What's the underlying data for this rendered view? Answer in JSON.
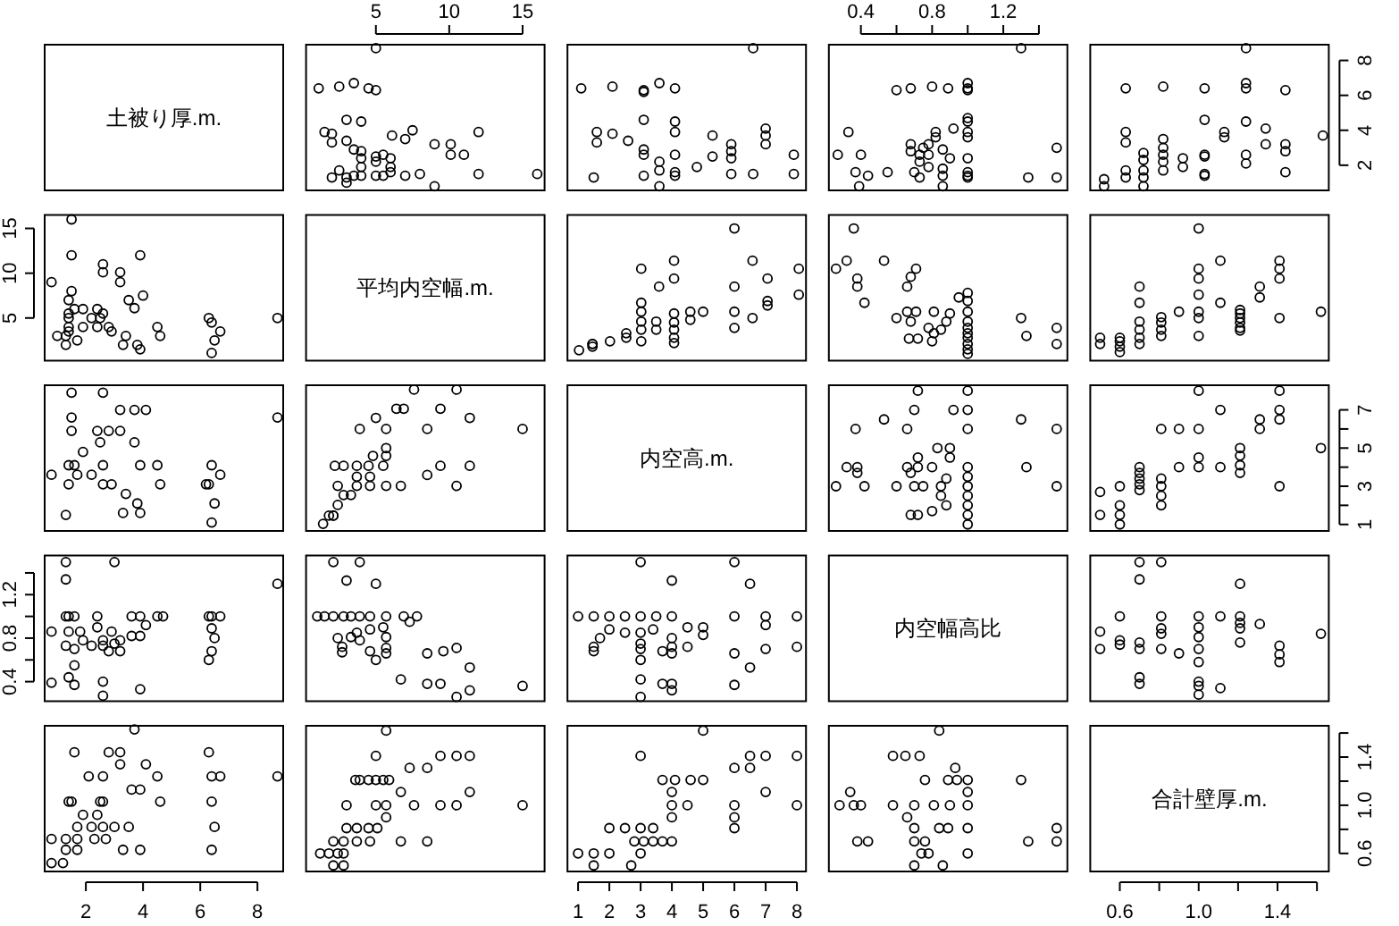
{
  "chart_data": [
    {
      "type": "other",
      "title": "土被り厚.m."
    },
    {
      "type": "scatter",
      "marker": "circle",
      "xlim": [
        0.24,
        16.5
      ],
      "ylim": [
        0.56,
        8.9
      ],
      "tick_labels": "x",
      "xticks": [
        5,
        10,
        15
      ],
      "x": [
        5.0,
        1.1,
        2.5,
        3.5,
        4.5,
        5.0,
        3.0,
        4.0,
        1.5,
        2.0,
        2.0,
        3.0,
        3.5,
        4.0,
        4.0,
        4.0,
        4.0,
        2.5,
        2.0,
        3.0,
        3.5,
        3.0,
        5.0,
        5.5,
        5.0,
        6.0,
        6.0,
        6.0,
        5.5,
        5.0,
        6.1,
        7.0,
        7.5,
        7.0,
        8.0,
        9.0,
        9.0,
        10.1,
        10.1,
        11.0,
        12.0,
        12.0,
        16.0
      ],
      "values": [
        8.7,
        6.4,
        6.5,
        6.7,
        6.4,
        6.3,
        4.6,
        4.5,
        3.9,
        3.8,
        3.3,
        3.4,
        2.9,
        2.8,
        2.4,
        1.9,
        1.4,
        1.7,
        1.3,
        1.3,
        1.4,
        1.0,
        2.5,
        2.6,
        2.2,
        2.4,
        1.9,
        1.6,
        1.4,
        1.4,
        3.7,
        3.5,
        4.0,
        1.4,
        1.5,
        0.8,
        3.2,
        3.2,
        2.6,
        2.6,
        3.9,
        1.5,
        1.5
      ]
    },
    {
      "type": "scatter",
      "marker": "circle",
      "xlim": [
        0.66,
        8.29
      ],
      "ylim": [
        0.56,
        8.9
      ],
      "tick_labels": false,
      "x": [
        6.6,
        1.1,
        2.1,
        3.1,
        3.1,
        3.6,
        4.1,
        1.6,
        1.6,
        2.1,
        2.6,
        3.1,
        3.1,
        3.1,
        3.1,
        3.6,
        3.6,
        4.1,
        4.1,
        4.1,
        4.1,
        4.1,
        4.8,
        5.3,
        5.3,
        3.6,
        1.5,
        5.9,
        5.9,
        5.9,
        5.9,
        6.6,
        7.0,
        7.0,
        7.0,
        7.9,
        7.9
      ],
      "values": [
        8.7,
        6.4,
        6.5,
        6.3,
        6.2,
        6.7,
        6.4,
        3.9,
        3.3,
        3.8,
        3.4,
        4.6,
        2.9,
        2.6,
        1.4,
        2.2,
        1.7,
        4.5,
        3.9,
        2.6,
        1.6,
        1.4,
        1.9,
        3.7,
        2.5,
        0.8,
        1.3,
        3.2,
        2.8,
        2.4,
        1.5,
        1.5,
        4.1,
        3.7,
        3.2,
        2.6,
        1.5
      ]
    },
    {
      "type": "scatter",
      "marker": "circle",
      "xlim": [
        0.22,
        1.56
      ],
      "ylim": [
        0.56,
        8.9
      ],
      "tick_labels": "x",
      "xticks": [
        0.4,
        {
          "value": 0.6,
          "label": null
        },
        0.8,
        {
          "value": 1,
          "label": null
        },
        1.2,
        {
          "value": 1.4,
          "label": null
        }
      ],
      "x": [
        1.3,
        0.6,
        0.68,
        0.8,
        0.89,
        1.0,
        1.0,
        1.0,
        1.0,
        1.0,
        1.0,
        1.0,
        1.0,
        1.0,
        1.0,
        1.0,
        0.33,
        0.27,
        0.4,
        0.37,
        0.44,
        0.39,
        0.55,
        0.68,
        0.68,
        0.7,
        0.73,
        0.73,
        0.75,
        0.73,
        0.78,
        0.78,
        0.78,
        0.82,
        0.82,
        0.86,
        0.86,
        0.86,
        0.86,
        0.9,
        0.92,
        1.5,
        1.5,
        1.34
      ],
      "values": [
        8.7,
        6.3,
        6.4,
        6.5,
        6.4,
        6.7,
        6.4,
        6.3,
        4.7,
        4.5,
        3.9,
        3.6,
        2.4,
        1.6,
        1.4,
        1.3,
        3.9,
        2.6,
        2.6,
        1.6,
        1.4,
        0.8,
        1.6,
        3.2,
        2.8,
        1.6,
        1.3,
        2.6,
        3.0,
        2.2,
        3.2,
        2.6,
        1.9,
        3.6,
        3.9,
        2.9,
        1.8,
        1.4,
        0.8,
        2.4,
        4.1,
        3.0,
        1.3,
        1.3
      ]
    },
    {
      "type": "scatter",
      "marker": "circle",
      "xlim": [
        0.45,
        1.66
      ],
      "ylim": [
        0.56,
        8.9
      ],
      "tick_labels": "y",
      "yticks": [
        2,
        4,
        6,
        8
      ],
      "x": [
        0.52,
        0.52,
        0.63,
        0.63,
        0.63,
        0.63,
        0.63,
        0.72,
        0.72,
        0.72,
        0.72,
        0.72,
        0.82,
        0.82,
        0.82,
        0.82,
        0.82,
        0.82,
        0.92,
        0.92,
        1.03,
        1.03,
        1.03,
        1.03,
        1.03,
        1.03,
        1.13,
        1.13,
        1.24,
        1.24,
        1.24,
        1.24,
        1.24,
        1.24,
        1.34,
        1.34,
        1.44,
        1.44,
        1.44,
        1.44,
        1.63
      ],
      "values": [
        1.2,
        0.8,
        6.4,
        3.9,
        3.3,
        1.7,
        1.3,
        2.7,
        2.3,
        1.7,
        1.3,
        0.8,
        6.5,
        3.5,
        3.0,
        2.6,
        2.2,
        1.7,
        2.4,
        1.9,
        6.4,
        4.6,
        2.6,
        2.5,
        1.5,
        1.4,
        3.9,
        3.6,
        8.7,
        6.7,
        6.4,
        4.5,
        2.6,
        2.1,
        4.1,
        3.2,
        6.3,
        3.2,
        2.8,
        1.6,
        3.7
      ]
    },
    {
      "type": "scatter",
      "marker": "circle",
      "xlim": [
        0.56,
        8.9
      ],
      "ylim": [
        0.24,
        16.5
      ],
      "tick_labels": "y",
      "yticks": [
        5,
        10,
        15
      ],
      "x": [
        8.7,
        6.4,
        6.5,
        6.7,
        6.4,
        6.3,
        4.6,
        4.5,
        3.9,
        3.8,
        3.3,
        3.4,
        2.9,
        2.8,
        2.4,
        1.9,
        1.4,
        1.7,
        1.3,
        1.3,
        1.4,
        1.0,
        2.5,
        2.6,
        2.2,
        2.4,
        1.9,
        1.6,
        1.4,
        1.4,
        3.7,
        3.5,
        4.0,
        1.4,
        1.5,
        0.8,
        3.2,
        3.2,
        2.6,
        2.6,
        3.9,
        1.5,
        1.5
      ],
      "values": [
        5.0,
        1.1,
        2.5,
        3.5,
        4.5,
        5.0,
        3.0,
        4.0,
        1.5,
        2.0,
        2.0,
        3.0,
        3.5,
        4.0,
        4.0,
        4.0,
        4.0,
        2.5,
        2.0,
        3.0,
        3.5,
        3.0,
        5.0,
        5.5,
        5.0,
        6.0,
        6.0,
        6.0,
        5.5,
        5.0,
        6.1,
        7.0,
        7.5,
        7.0,
        8.0,
        9.0,
        9.0,
        10.1,
        10.1,
        11.0,
        12.0,
        12.0,
        16.0
      ]
    },
    {
      "type": "other",
      "title": "平均内空幅.m."
    },
    {
      "type": "scatter",
      "marker": "circle",
      "xlim": [
        0.66,
        8.29
      ],
      "ylim": [
        0.24,
        16.5
      ],
      "tick_labels": false,
      "x": [
        1.03,
        1.46,
        1.46,
        1.46,
        2.02,
        2.54,
        2.54,
        3.02,
        3.02,
        3.02,
        3.02,
        3.02,
        3.02,
        3.5,
        3.5,
        4.07,
        4.07,
        4.07,
        4.07,
        4.07,
        4.07,
        4.07,
        3.59,
        4.59,
        4.59,
        5.0,
        6.0,
        6.0,
        6.0,
        6.0,
        6.58,
        6.58,
        7.06,
        7.06,
        7.06,
        8.06,
        8.06
      ],
      "values": [
        1.4,
        2.1,
        2.1,
        1.8,
        2.4,
        2.8,
        3.3,
        3.7,
        4.6,
        2.4,
        5.7,
        6.7,
        10.5,
        3.7,
        4.6,
        2.2,
        2.8,
        3.7,
        4.5,
        5.5,
        9.4,
        11.4,
        8.5,
        4.8,
        5.7,
        5.7,
        15.0,
        8.5,
        5.7,
        3.9,
        11.4,
        5.0,
        6.9,
        6.4,
        9.4,
        10.5,
        7.6
      ]
    },
    {
      "type": "scatter",
      "marker": "circle",
      "xlim": [
        0.22,
        1.56
      ],
      "ylim": [
        0.24,
        16.5
      ],
      "tick_labels": false,
      "x": [
        0.26,
        0.32,
        0.36,
        0.38,
        0.38,
        0.42,
        0.53,
        0.6,
        0.66,
        0.68,
        0.71,
        0.66,
        0.68,
        0.71,
        0.72,
        0.67,
        0.78,
        0.8,
        0.81,
        0.81,
        0.85,
        0.88,
        0.9,
        0.95,
        1.0,
        1.0,
        1.0,
        1.0,
        1.0,
        1.0,
        1.0,
        1.0,
        1.0,
        1.0,
        1.3,
        1.33,
        1.5,
        1.5
      ],
      "values": [
        10.5,
        11.4,
        15.0,
        8.5,
        9.4,
        6.7,
        11.4,
        5.0,
        8.5,
        9.6,
        10.5,
        5.7,
        4.6,
        5.7,
        2.7,
        2.7,
        3.9,
        2.4,
        5.7,
        3.3,
        3.7,
        4.6,
        5.5,
        7.3,
        7.8,
        6.9,
        5.7,
        4.6,
        3.9,
        3.3,
        2.8,
        2.1,
        1.5,
        1.0,
        5.0,
        3.0,
        3.9,
        2.1
      ]
    },
    {
      "type": "scatter",
      "marker": "circle",
      "xlim": [
        0.45,
        1.66
      ],
      "ylim": [
        0.24,
        16.5
      ],
      "tick_labels": false,
      "x": [
        0.5,
        0.5,
        0.6,
        0.6,
        0.6,
        0.6,
        0.7,
        0.7,
        0.7,
        0.7,
        0.7,
        0.7,
        0.81,
        0.81,
        0.81,
        0.81,
        0.9,
        1.0,
        1.0,
        1.0,
        1.0,
        1.0,
        1.0,
        1.0,
        1.11,
        1.11,
        1.21,
        1.21,
        1.21,
        1.21,
        1.21,
        1.21,
        1.31,
        1.31,
        1.41,
        1.41,
        1.41,
        1.41,
        1.62
      ],
      "values": [
        2.8,
        2.1,
        2.8,
        2.4,
        1.8,
        1.2,
        8.5,
        6.7,
        4.6,
        3.7,
        2.8,
        2.1,
        5.1,
        4.5,
        3.7,
        3.0,
        5.7,
        15.0,
        10.5,
        9.4,
        7.6,
        5.7,
        5.0,
        3.0,
        11.4,
        6.7,
        5.9,
        5.5,
        5.0,
        4.5,
        3.9,
        3.6,
        8.5,
        7.3,
        11.4,
        10.5,
        9.4,
        5.0,
        5.7
      ]
    },
    {
      "type": "scatter",
      "marker": "circle",
      "xlim": [
        0.56,
        8.9
      ],
      "ylim": [
        0.66,
        8.29
      ],
      "tick_labels": false,
      "x": [
        8.7,
        6.4,
        6.5,
        6.3,
        6.2,
        6.7,
        6.4,
        3.9,
        3.3,
        3.8,
        3.4,
        4.6,
        2.9,
        2.6,
        1.4,
        2.2,
        1.7,
        4.5,
        3.9,
        2.6,
        1.6,
        1.4,
        1.9,
        3.7,
        2.5,
        0.8,
        1.3,
        3.2,
        2.8,
        2.4,
        1.5,
        1.5,
        4.1,
        3.7,
        3.2,
        2.6,
        1.5
      ],
      "values": [
        6.6,
        1.1,
        2.1,
        3.1,
        3.1,
        3.6,
        4.1,
        1.6,
        1.6,
        2.1,
        2.6,
        3.1,
        3.1,
        3.1,
        3.1,
        3.6,
        3.6,
        4.1,
        4.1,
        4.1,
        4.1,
        4.1,
        4.8,
        5.3,
        5.3,
        3.6,
        1.5,
        5.9,
        5.9,
        5.9,
        5.9,
        6.6,
        7.0,
        7.0,
        7.0,
        7.9,
        7.9
      ]
    },
    {
      "type": "scatter",
      "marker": "circle",
      "xlim": [
        0.24,
        16.5
      ],
      "ylim": [
        0.66,
        8.29
      ],
      "tick_labels": false,
      "x": [
        1.4,
        2.1,
        2.1,
        1.8,
        2.4,
        2.8,
        3.3,
        3.7,
        4.6,
        2.4,
        5.7,
        6.7,
        10.5,
        3.7,
        4.6,
        2.2,
        2.8,
        3.7,
        4.5,
        5.5,
        9.4,
        11.4,
        8.5,
        4.8,
        5.7,
        5.7,
        15.0,
        8.5,
        5.7,
        3.9,
        11.4,
        5.0,
        6.9,
        6.4,
        9.4,
        10.5,
        7.6
      ],
      "values": [
        1.03,
        1.46,
        1.46,
        1.46,
        2.02,
        2.54,
        2.54,
        3.02,
        3.02,
        3.02,
        3.02,
        3.02,
        3.02,
        3.5,
        3.5,
        4.07,
        4.07,
        4.07,
        4.07,
        4.07,
        4.07,
        4.07,
        3.59,
        4.59,
        4.59,
        5.0,
        6.0,
        6.0,
        6.0,
        6.0,
        6.58,
        6.58,
        7.06,
        7.06,
        7.06,
        8.06,
        8.06
      ]
    },
    {
      "type": "other",
      "title": "内空高.m."
    },
    {
      "type": "scatter",
      "marker": "circle",
      "xlim": [
        0.22,
        1.56
      ],
      "ylim": [
        0.66,
        8.29
      ],
      "tick_labels": false,
      "x": [
        0.26,
        0.32,
        0.38,
        0.38,
        0.42,
        0.37,
        0.53,
        0.6,
        0.66,
        0.7,
        0.72,
        0.66,
        0.68,
        0.7,
        0.68,
        0.72,
        0.72,
        0.75,
        0.72,
        0.8,
        0.8,
        0.83,
        0.85,
        0.85,
        0.88,
        0.9,
        0.9,
        0.92,
        0.88,
        1.0,
        1.0,
        1.0,
        1.0,
        1.0,
        1.0,
        1.0,
        1.0,
        1.0,
        1.0,
        1.3,
        1.33,
        1.5,
        1.5
      ],
      "values": [
        3.0,
        4.0,
        4.0,
        3.7,
        3.0,
        6.0,
        6.5,
        3.0,
        6.0,
        7.0,
        8.0,
        4.0,
        3.7,
        3.0,
        1.5,
        4.5,
        4.0,
        3.0,
        1.5,
        4.0,
        1.7,
        5.0,
        3.0,
        2.5,
        3.4,
        5.0,
        4.5,
        7.0,
        2.0,
        8.0,
        7.0,
        6.0,
        4.0,
        3.5,
        3.0,
        2.5,
        2.0,
        1.5,
        1.0,
        6.5,
        4.0,
        6.0,
        3.0
      ]
    },
    {
      "type": "scatter",
      "marker": "circle",
      "xlim": [
        0.45,
        1.66
      ],
      "ylim": [
        0.66,
        8.29
      ],
      "tick_labels": "y",
      "yticks": [
        1,
        {
          "value": 2,
          "label": null
        },
        3,
        {
          "value": 4,
          "label": null
        },
        5,
        {
          "value": 6,
          "label": null
        },
        7
      ],
      "x": [
        0.5,
        0.5,
        0.6,
        0.6,
        0.6,
        0.6,
        0.7,
        0.7,
        0.7,
        0.7,
        0.7,
        0.81,
        0.81,
        0.81,
        0.81,
        0.81,
        0.9,
        0.9,
        1.0,
        1.0,
        1.0,
        1.0,
        1.11,
        1.11,
        1.21,
        1.21,
        1.21,
        1.21,
        1.31,
        1.31,
        1.41,
        1.41,
        1.41,
        1.41,
        1.62
      ],
      "values": [
        2.7,
        1.5,
        3.0,
        2.0,
        1.5,
        1.0,
        4.0,
        3.7,
        3.4,
        3.1,
        2.8,
        6.0,
        3.4,
        3.0,
        2.5,
        2.0,
        6.0,
        4.0,
        8.0,
        6.0,
        4.5,
        4.0,
        7.0,
        4.0,
        5.0,
        4.6,
        4.1,
        3.7,
        6.5,
        6.0,
        8.0,
        7.0,
        6.5,
        3.0,
        5.0
      ]
    },
    {
      "type": "scatter",
      "marker": "circle",
      "xlim": [
        0.56,
        8.9
      ],
      "ylim": [
        0.22,
        1.56
      ],
      "tick_labels": "y",
      "yticks": [
        0.4,
        {
          "value": 0.6,
          "label": null
        },
        0.8,
        {
          "value": 1,
          "label": null
        },
        1.2,
        {
          "value": 1.4,
          "label": null
        }
      ],
      "x": [
        8.7,
        6.3,
        6.4,
        6.5,
        6.4,
        6.7,
        6.4,
        6.3,
        4.7,
        4.5,
        3.9,
        3.6,
        2.4,
        1.6,
        1.4,
        1.3,
        3.9,
        2.6,
        2.6,
        1.6,
        1.4,
        0.8,
        1.6,
        3.2,
        2.8,
        1.6,
        1.3,
        2.6,
        3.0,
        2.2,
        3.2,
        2.6,
        1.9,
        3.6,
        3.9,
        2.9,
        1.8,
        1.4,
        0.8,
        2.4,
        4.1,
        3.0,
        1.3,
        1.3
      ],
      "values": [
        1.3,
        0.6,
        0.68,
        0.8,
        0.89,
        1.0,
        1.0,
        1.0,
        1.0,
        1.0,
        1.0,
        1.0,
        1.0,
        1.0,
        1.0,
        1.0,
        0.33,
        0.27,
        0.4,
        0.37,
        0.44,
        0.39,
        0.55,
        0.68,
        0.68,
        0.7,
        0.73,
        0.73,
        0.75,
        0.73,
        0.78,
        0.78,
        0.78,
        0.82,
        0.82,
        0.86,
        0.86,
        0.86,
        0.86,
        0.9,
        0.92,
        1.5,
        1.5,
        1.34
      ]
    },
    {
      "type": "scatter",
      "marker": "circle",
      "xlim": [
        0.24,
        16.5
      ],
      "ylim": [
        0.22,
        1.56
      ],
      "tick_labels": false,
      "x": [
        10.5,
        11.4,
        15.0,
        8.5,
        9.4,
        6.7,
        11.4,
        5.0,
        8.5,
        9.6,
        10.5,
        5.7,
        4.6,
        5.7,
        2.7,
        2.7,
        3.9,
        2.4,
        5.7,
        3.3,
        3.7,
        4.6,
        5.5,
        7.3,
        7.8,
        6.9,
        5.7,
        4.6,
        3.9,
        3.3,
        2.8,
        2.1,
        1.5,
        1.0,
        5.0,
        3.0,
        3.9,
        2.1
      ],
      "values": [
        0.26,
        0.32,
        0.36,
        0.38,
        0.38,
        0.42,
        0.53,
        0.6,
        0.66,
        0.68,
        0.71,
        0.66,
        0.68,
        0.71,
        0.72,
        0.67,
        0.78,
        0.8,
        0.81,
        0.81,
        0.85,
        0.88,
        0.9,
        0.95,
        1.0,
        1.0,
        1.0,
        1.0,
        1.0,
        1.0,
        1.0,
        1.0,
        1.0,
        1.0,
        1.3,
        1.33,
        1.5,
        1.5
      ]
    },
    {
      "type": "scatter",
      "marker": "circle",
      "xlim": [
        0.66,
        8.29
      ],
      "ylim": [
        0.22,
        1.56
      ],
      "tick_labels": false,
      "x": [
        3.0,
        4.0,
        4.0,
        3.7,
        3.0,
        6.0,
        6.5,
        3.0,
        6.0,
        7.0,
        8.0,
        4.0,
        3.7,
        3.0,
        1.5,
        4.5,
        4.0,
        3.0,
        1.5,
        4.0,
        1.7,
        5.0,
        3.0,
        2.5,
        3.4,
        5.0,
        4.5,
        7.0,
        2.0,
        8.0,
        7.0,
        6.0,
        4.0,
        3.5,
        3.0,
        2.5,
        2.0,
        1.5,
        1.0,
        6.5,
        4.0,
        6.0,
        3.0
      ],
      "values": [
        0.26,
        0.32,
        0.38,
        0.38,
        0.42,
        0.37,
        0.53,
        0.6,
        0.66,
        0.7,
        0.72,
        0.66,
        0.68,
        0.7,
        0.68,
        0.72,
        0.72,
        0.75,
        0.72,
        0.8,
        0.8,
        0.83,
        0.85,
        0.85,
        0.88,
        0.9,
        0.9,
        0.92,
        0.88,
        1.0,
        1.0,
        1.0,
        1.0,
        1.0,
        1.0,
        1.0,
        1.0,
        1.0,
        1.0,
        1.3,
        1.33,
        1.5,
        1.5
      ]
    },
    {
      "type": "other",
      "title": "内空幅高比"
    },
    {
      "type": "scatter",
      "marker": "circle",
      "xlim": [
        0.45,
        1.66
      ],
      "ylim": [
        0.22,
        1.56
      ],
      "tick_labels": false,
      "x": [
        0.5,
        0.5,
        0.6,
        0.6,
        0.6,
        0.7,
        0.7,
        0.7,
        0.7,
        0.7,
        0.7,
        0.81,
        0.81,
        0.81,
        0.81,
        0.81,
        0.9,
        1.0,
        1.0,
        1.0,
        1.0,
        1.0,
        1.0,
        1.0,
        1.0,
        1.11,
        1.11,
        1.21,
        1.21,
        1.21,
        1.21,
        1.21,
        1.31,
        1.41,
        1.41,
        1.41,
        1.62
      ],
      "values": [
        0.86,
        0.7,
        1.0,
        0.78,
        0.74,
        1.5,
        1.34,
        0.76,
        0.7,
        0.44,
        0.38,
        1.5,
        1.0,
        0.89,
        0.84,
        0.7,
        0.66,
        1.0,
        0.9,
        0.81,
        0.7,
        0.58,
        0.4,
        0.36,
        0.28,
        0.34,
        1.0,
        1.3,
        1.0,
        0.94,
        0.89,
        0.76,
        0.93,
        0.73,
        0.65,
        0.58,
        0.84
      ]
    },
    {
      "type": "scatter",
      "marker": "circle",
      "xlim": [
        0.56,
        8.9
      ],
      "ylim": [
        0.45,
        1.66
      ],
      "tick_labels": "x",
      "xticks": [
        2,
        4,
        6,
        8
      ],
      "x": [
        1.2,
        0.8,
        6.4,
        3.9,
        3.3,
        1.7,
        1.3,
        2.7,
        2.3,
        1.7,
        1.3,
        0.8,
        6.5,
        3.5,
        3.0,
        2.6,
        2.2,
        1.7,
        2.4,
        1.9,
        6.4,
        4.6,
        2.6,
        2.5,
        1.5,
        1.4,
        3.9,
        3.6,
        8.7,
        6.7,
        6.4,
        4.5,
        2.6,
        2.1,
        4.1,
        3.2,
        6.3,
        3.2,
        2.8,
        1.6,
        3.7
      ],
      "values": [
        0.52,
        0.52,
        0.63,
        0.63,
        0.63,
        0.63,
        0.63,
        0.72,
        0.72,
        0.72,
        0.72,
        0.72,
        0.82,
        0.82,
        0.82,
        0.82,
        0.82,
        0.82,
        0.92,
        0.92,
        1.03,
        1.03,
        1.03,
        1.03,
        1.03,
        1.03,
        1.13,
        1.13,
        1.24,
        1.24,
        1.24,
        1.24,
        1.24,
        1.24,
        1.34,
        1.34,
        1.44,
        1.44,
        1.44,
        1.44,
        1.63
      ]
    },
    {
      "type": "scatter",
      "marker": "circle",
      "xlim": [
        0.24,
        16.5
      ],
      "ylim": [
        0.45,
        1.66
      ],
      "tick_labels": false,
      "x": [
        2.8,
        2.1,
        2.8,
        2.4,
        1.8,
        1.2,
        8.5,
        6.7,
        4.6,
        3.7,
        2.8,
        2.1,
        5.1,
        4.5,
        3.7,
        3.0,
        5.7,
        15.0,
        10.5,
        9.4,
        7.6,
        5.7,
        5.0,
        3.0,
        11.4,
        6.7,
        5.9,
        5.5,
        5.0,
        4.5,
        3.9,
        3.6,
        8.5,
        7.3,
        11.4,
        10.5,
        9.4,
        5.0,
        5.7
      ],
      "values": [
        0.5,
        0.5,
        0.6,
        0.6,
        0.6,
        0.6,
        0.7,
        0.7,
        0.7,
        0.7,
        0.7,
        0.7,
        0.81,
        0.81,
        0.81,
        0.81,
        0.9,
        1.0,
        1.0,
        1.0,
        1.0,
        1.0,
        1.0,
        1.0,
        1.11,
        1.11,
        1.21,
        1.21,
        1.21,
        1.21,
        1.21,
        1.21,
        1.31,
        1.31,
        1.41,
        1.41,
        1.41,
        1.41,
        1.62
      ]
    },
    {
      "type": "scatter",
      "marker": "circle",
      "xlim": [
        0.66,
        8.29
      ],
      "ylim": [
        0.45,
        1.66
      ],
      "tick_labels": "x",
      "xticks": [
        1,
        2,
        3,
        4,
        5,
        6,
        7,
        8
      ],
      "x": [
        2.7,
        1.5,
        3.0,
        2.0,
        1.5,
        1.0,
        4.0,
        3.7,
        3.4,
        3.1,
        2.8,
        6.0,
        3.4,
        3.0,
        2.5,
        2.0,
        6.0,
        4.0,
        8.0,
        6.0,
        4.5,
        4.0,
        7.0,
        4.0,
        5.0,
        4.6,
        4.1,
        3.7,
        6.5,
        6.0,
        8.0,
        7.0,
        6.5,
        3.0,
        5.0
      ],
      "values": [
        0.5,
        0.5,
        0.6,
        0.6,
        0.6,
        0.6,
        0.7,
        0.7,
        0.7,
        0.7,
        0.7,
        0.81,
        0.81,
        0.81,
        0.81,
        0.81,
        0.9,
        0.9,
        1.0,
        1.0,
        1.0,
        1.0,
        1.11,
        1.11,
        1.21,
        1.21,
        1.21,
        1.21,
        1.31,
        1.31,
        1.41,
        1.41,
        1.41,
        1.41,
        1.62
      ]
    },
    {
      "type": "scatter",
      "marker": "circle",
      "xlim": [
        0.22,
        1.56
      ],
      "ylim": [
        0.45,
        1.66
      ],
      "tick_labels": false,
      "x": [
        0.86,
        0.7,
        1.0,
        0.78,
        0.74,
        1.5,
        1.34,
        0.76,
        0.7,
        0.44,
        0.38,
        1.5,
        1.0,
        0.89,
        0.84,
        0.7,
        0.66,
        1.0,
        0.9,
        0.81,
        0.7,
        0.58,
        0.4,
        0.36,
        0.28,
        0.34,
        1.0,
        1.3,
        1.0,
        0.94,
        0.89,
        0.76,
        0.93,
        0.73,
        0.65,
        0.58,
        0.84
      ],
      "values": [
        0.5,
        0.5,
        0.6,
        0.6,
        0.6,
        0.7,
        0.7,
        0.7,
        0.7,
        0.7,
        0.7,
        0.81,
        0.81,
        0.81,
        0.81,
        0.81,
        0.9,
        1.0,
        1.0,
        1.0,
        1.0,
        1.0,
        1.0,
        1.0,
        1.0,
        1.11,
        1.11,
        1.21,
        1.21,
        1.21,
        1.21,
        1.21,
        1.31,
        1.41,
        1.41,
        1.41,
        1.62
      ]
    },
    {
      "type": "scatter",
      "title": "合計壁厚.m.",
      "xlim": [
        0.45,
        1.66
      ],
      "ylim": [
        0.45,
        1.66
      ],
      "xticks": [
        0.6,
        {
          "value": 0.8,
          "label": null
        },
        {
          "value": 1,
          "label": "1.0"
        },
        {
          "value": 1.2,
          "label": null
        },
        1.4,
        {
          "value": 1.6,
          "label": null
        }
      ],
      "yticks": [
        0.6,
        {
          "value": 0.8,
          "label": null
        },
        {
          "value": 1,
          "label": "1.0"
        },
        {
          "value": 1.2,
          "label": null
        },
        1.4,
        {
          "value": 1.6,
          "label": null
        }
      ]
    }
  ]
}
